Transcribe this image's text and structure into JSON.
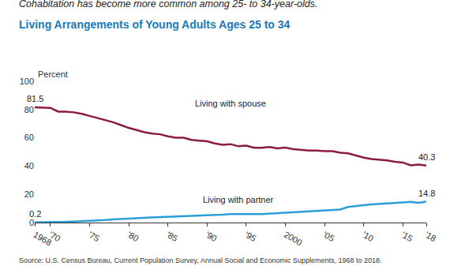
{
  "chart_data": {
    "type": "line",
    "subtitle": "Cohabitation has become more common among 25- to 34-year-olds.",
    "title": "Living Arrangements of Young Adults Ages 25 to 34",
    "ylabel": "Percent",
    "source": "Source: U.S. Census Bureau, Current Population Survey, Annual Social and Economic Supplements, 1968 to 2018.",
    "x": [
      1968,
      1969,
      1970,
      1971,
      1972,
      1973,
      1974,
      1975,
      1976,
      1977,
      1978,
      1979,
      1980,
      1981,
      1982,
      1983,
      1984,
      1985,
      1986,
      1987,
      1988,
      1989,
      1990,
      1991,
      1992,
      1993,
      1994,
      1995,
      1996,
      1997,
      1998,
      1999,
      2000,
      2001,
      2002,
      2003,
      2004,
      2005,
      2006,
      2007,
      2008,
      2009,
      2010,
      2011,
      2012,
      2013,
      2014,
      2015,
      2016,
      2017,
      2018
    ],
    "series": [
      {
        "name": "Living with spouse",
        "color": "#8c1c3e",
        "values": [
          81.5,
          81.5,
          81.2,
          78.5,
          78.5,
          78,
          77,
          75.5,
          74,
          72.5,
          71,
          69,
          67,
          65.5,
          64,
          63,
          62.5,
          61,
          60,
          60,
          58.5,
          58,
          57.5,
          56,
          55,
          55.5,
          54,
          54.5,
          53,
          53,
          53.5,
          52.5,
          53,
          52,
          51.5,
          51,
          51,
          50.5,
          50.5,
          49.5,
          49,
          47.5,
          46,
          45,
          44.5,
          44,
          43,
          42.5,
          40.5,
          41,
          40.3
        ],
        "value_labels": [
          "81.5",
          null,
          null,
          null,
          null,
          null,
          null,
          null,
          null,
          null,
          null,
          null,
          null,
          null,
          null,
          null,
          null,
          null,
          null,
          null,
          null,
          null,
          null,
          null,
          null,
          null,
          null,
          null,
          null,
          null,
          null,
          null,
          null,
          null,
          null,
          null,
          null,
          null,
          null,
          null,
          null,
          null,
          null,
          null,
          null,
          null,
          null,
          null,
          null,
          null,
          "40.3"
        ]
      },
      {
        "name": "Living with partner",
        "color": "#2a9fd6",
        "values": [
          0.2,
          0.2,
          0.3,
          0.4,
          0.5,
          0.7,
          0.9,
          1.1,
          1.5,
          1.8,
          2.2,
          2.6,
          2.9,
          3.1,
          3.4,
          3.6,
          3.8,
          3.8,
          4.0,
          4.2,
          4.6,
          5.0,
          5.1,
          5.3,
          5.6,
          6.0,
          6.0,
          6.2,
          5.8,
          6.0,
          6.3,
          6.8,
          7.0,
          7.3,
          7.6,
          7.9,
          8.2,
          8.5,
          8.8,
          9.2,
          11.0,
          11.8,
          12.3,
          12.8,
          13.2,
          13.6,
          14.0,
          14.3,
          14.6,
          14.0,
          14.8
        ],
        "value_labels": [
          "0.2",
          null,
          null,
          null,
          null,
          null,
          null,
          null,
          null,
          null,
          null,
          null,
          null,
          null,
          null,
          null,
          null,
          null,
          null,
          null,
          null,
          null,
          null,
          null,
          null,
          null,
          null,
          null,
          null,
          null,
          null,
          null,
          null,
          null,
          null,
          null,
          null,
          null,
          null,
          null,
          null,
          null,
          null,
          null,
          null,
          null,
          null,
          null,
          null,
          null,
          "14.8"
        ]
      }
    ],
    "xlim": [
      1968,
      2018
    ],
    "xticks": [
      1968,
      {
        "value": 1970,
        "label": "'70"
      },
      {
        "value": 1975,
        "label": "'75"
      },
      {
        "value": 1980,
        "label": "'80"
      },
      {
        "value": 1985,
        "label": "'85"
      },
      {
        "value": 1990,
        "label": "'90"
      },
      {
        "value": 1995,
        "label": "'95"
      },
      2000,
      {
        "value": 2005,
        "label": "'05"
      },
      {
        "value": 2010,
        "label": "'10"
      },
      {
        "value": 2015,
        "label": "'15"
      },
      {
        "value": 2018,
        "label": "'18"
      }
    ],
    "ylim": [
      0,
      100
    ],
    "yticks": [
      0,
      20,
      40,
      60,
      80,
      100
    ],
    "grid": false
  }
}
